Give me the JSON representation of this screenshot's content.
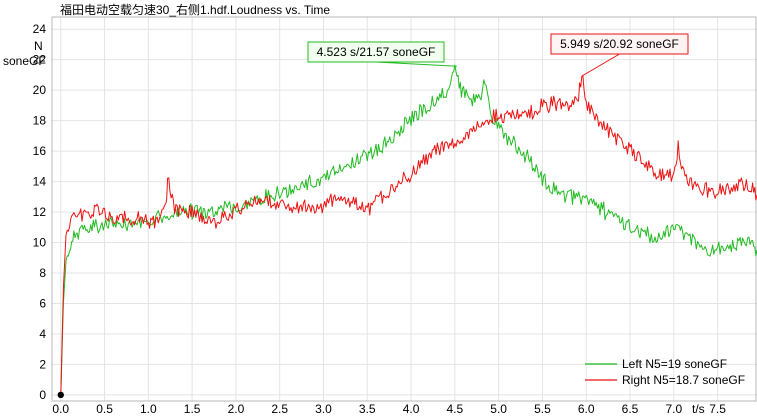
{
  "chart_data": {
    "type": "line",
    "title": "福田电动空载匀速30_右侧1.hdf.Loudness vs. Time",
    "ylabel_line1": "N",
    "ylabel_line2": "soneGF",
    "xlabel": "t/s",
    "xlim": [
      -0.1,
      7.95
    ],
    "ylim": [
      -0.4,
      24.8
    ],
    "x_ticks": [
      0.0,
      0.5,
      1.0,
      1.5,
      2.0,
      2.5,
      3.0,
      3.5,
      4.0,
      4.5,
      5.0,
      5.5,
      6.0,
      6.5,
      7.0,
      7.5
    ],
    "x_tick_labels": [
      "0.0",
      "0.5",
      "1.0",
      "1.5",
      "2.0",
      "2.5",
      "3.0",
      "3.5",
      "4.0",
      "4.5",
      "5.0",
      "5.5",
      "6.0",
      "6.5",
      "7.0",
      "7.5"
    ],
    "y_ticks": [
      0,
      2,
      4,
      6,
      8,
      10,
      12,
      14,
      16,
      18,
      20,
      22,
      24
    ],
    "y_tick_labels": [
      "0",
      "2",
      "4",
      "6",
      "8",
      "10",
      "12",
      "14",
      "16",
      "18",
      "20",
      "22",
      "24"
    ],
    "grid": true,
    "legend_position": "bottom-right",
    "series": [
      {
        "name": "Left N5=19 soneGF",
        "color": "#22bb22",
        "x": [
          0.0,
          0.03,
          0.06,
          0.1,
          0.15,
          0.2,
          0.3,
          0.4,
          0.5,
          0.6,
          0.7,
          0.8,
          0.9,
          1.0,
          1.1,
          1.2,
          1.3,
          1.4,
          1.5,
          1.6,
          1.7,
          1.8,
          1.9,
          2.0,
          2.1,
          2.2,
          2.3,
          2.4,
          2.5,
          2.6,
          2.7,
          2.8,
          2.9,
          3.0,
          3.1,
          3.2,
          3.3,
          3.4,
          3.5,
          3.6,
          3.7,
          3.8,
          3.9,
          4.0,
          4.1,
          4.2,
          4.3,
          4.4,
          4.5,
          4.55,
          4.6,
          4.7,
          4.8,
          4.83,
          4.9,
          5.0,
          5.1,
          5.2,
          5.3,
          5.4,
          5.5,
          5.6,
          5.7,
          5.8,
          5.9,
          6.0,
          6.1,
          6.2,
          6.3,
          6.4,
          6.5,
          6.6,
          6.7,
          6.8,
          6.9,
          7.0,
          7.05,
          7.1,
          7.2,
          7.3,
          7.4,
          7.5,
          7.6,
          7.7,
          7.8,
          7.9,
          7.95
        ],
        "y": [
          0.0,
          6.0,
          8.8,
          9.8,
          10.4,
          10.7,
          10.9,
          11.1,
          11.1,
          11.2,
          11.3,
          11.3,
          11.4,
          11.5,
          11.6,
          11.8,
          11.9,
          12.0,
          12.0,
          12.1,
          12.1,
          12.2,
          12.2,
          12.3,
          12.5,
          12.8,
          13.0,
          13.1,
          13.2,
          13.4,
          13.6,
          13.8,
          14.0,
          14.3,
          14.6,
          14.9,
          15.1,
          15.4,
          15.7,
          16.1,
          16.5,
          17.0,
          17.6,
          18.1,
          18.6,
          19.0,
          19.4,
          19.8,
          21.57,
          20.3,
          19.8,
          19.3,
          19.8,
          21.0,
          18.6,
          17.5,
          16.8,
          16.3,
          15.8,
          15.1,
          14.2,
          13.6,
          13.3,
          13.1,
          13.0,
          12.8,
          12.5,
          12.1,
          11.7,
          11.4,
          11.1,
          10.8,
          10.5,
          10.4,
          10.7,
          10.9,
          11.4,
          10.8,
          10.2,
          9.8,
          9.5,
          9.5,
          9.7,
          9.9,
          10.1,
          9.7,
          9.5
        ]
      },
      {
        "name": "Right N5=18.7 soneGF",
        "color": "#ee1111",
        "x": [
          0.0,
          0.03,
          0.06,
          0.1,
          0.15,
          0.2,
          0.3,
          0.4,
          0.5,
          0.6,
          0.7,
          0.8,
          0.9,
          1.0,
          1.1,
          1.2,
          1.22,
          1.3,
          1.4,
          1.5,
          1.6,
          1.7,
          1.8,
          1.9,
          2.0,
          2.1,
          2.2,
          2.3,
          2.4,
          2.5,
          2.6,
          2.7,
          2.8,
          2.9,
          3.0,
          3.1,
          3.2,
          3.3,
          3.4,
          3.5,
          3.6,
          3.7,
          3.8,
          3.9,
          4.0,
          4.1,
          4.2,
          4.3,
          4.4,
          4.5,
          4.6,
          4.7,
          4.8,
          4.9,
          5.0,
          5.1,
          5.2,
          5.3,
          5.4,
          5.5,
          5.6,
          5.7,
          5.8,
          5.9,
          5.949,
          6.0,
          6.1,
          6.2,
          6.3,
          6.4,
          6.5,
          6.6,
          6.7,
          6.8,
          6.9,
          7.0,
          7.05,
          7.1,
          7.2,
          7.3,
          7.4,
          7.5,
          7.6,
          7.7,
          7.8,
          7.9,
          7.95
        ],
        "y": [
          0.0,
          7.0,
          10.5,
          11.4,
          11.6,
          11.7,
          11.9,
          12.0,
          11.9,
          11.7,
          11.6,
          11.5,
          11.5,
          11.4,
          11.5,
          12.2,
          14.2,
          12.2,
          12.0,
          11.9,
          11.7,
          11.4,
          11.4,
          11.7,
          12.1,
          12.4,
          12.6,
          12.8,
          12.7,
          12.5,
          12.4,
          12.3,
          12.3,
          12.2,
          12.4,
          12.9,
          13.1,
          12.8,
          12.4,
          12.2,
          12.6,
          13.2,
          13.6,
          14.0,
          14.6,
          15.2,
          15.6,
          16.0,
          16.4,
          16.6,
          16.8,
          17.2,
          17.9,
          18.3,
          18.4,
          18.3,
          18.2,
          18.4,
          18.6,
          18.9,
          19.1,
          19.2,
          18.8,
          19.2,
          20.92,
          19.0,
          18.2,
          17.6,
          17.0,
          16.6,
          16.1,
          15.6,
          15.0,
          14.6,
          14.3,
          14.4,
          16.2,
          14.8,
          13.8,
          13.6,
          13.4,
          13.3,
          13.5,
          13.6,
          13.8,
          13.6,
          13.1
        ]
      }
    ],
    "annotations": [
      {
        "text": "4.523 s/21.57 soneGF",
        "x": 4.523,
        "y": 21.57,
        "border": "#22bb22",
        "fill": "#f2fff0"
      },
      {
        "text": "5.949 s/20.92 soneGF",
        "x": 5.949,
        "y": 20.92,
        "border": "#ee1111",
        "fill": "#fff4f4"
      }
    ],
    "cursor_marker": {
      "x": 0,
      "y": 0
    }
  }
}
